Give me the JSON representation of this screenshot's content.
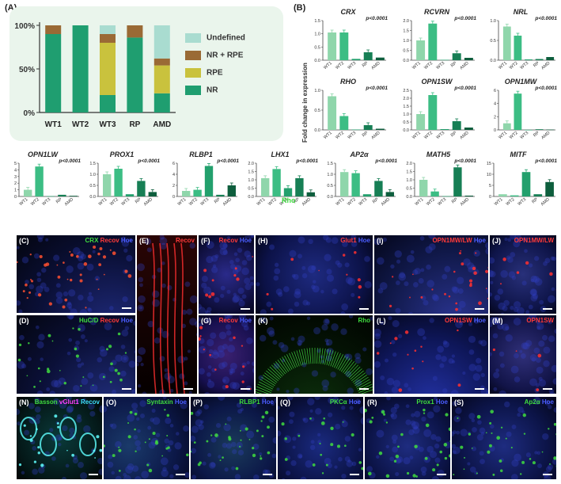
{
  "panelA": {
    "label": "(A)",
    "yticks": [
      "100%",
      "50%",
      "0%"
    ],
    "legend": [
      {
        "label": "Undefined",
        "color": "#a9dcd0"
      },
      {
        "label": "NR + RPE",
        "color": "#9a6a35"
      },
      {
        "label": "RPE",
        "color": "#c9c23d"
      },
      {
        "label": "NR",
        "color": "#1f9e70"
      }
    ]
  },
  "panelB": {
    "label": "(B)",
    "ylabel": "Fold change in expression",
    "rho_label": "Rho"
  },
  "colors": {
    "WT1": "#8fd6ab",
    "WT2": "#3cbd84",
    "WT3": "#23a06d",
    "RP": "#177f55",
    "AMD": "#0e5e3d"
  },
  "chart_data": [
    {
      "type": "bar",
      "title": "",
      "categories": [
        "WT1",
        "WT2",
        "WT3",
        "RP",
        "AMD"
      ],
      "stacked": true,
      "ylim": [
        0,
        100
      ],
      "series": [
        {
          "name": "NR",
          "values": [
            90,
            100,
            20,
            86,
            22
          ]
        },
        {
          "name": "RPE",
          "values": [
            0,
            0,
            60,
            0,
            32
          ]
        },
        {
          "name": "NR + RPE",
          "values": [
            10,
            0,
            10,
            14,
            8
          ]
        },
        {
          "name": "Undefined",
          "values": [
            0,
            0,
            10,
            0,
            38
          ]
        }
      ]
    },
    {
      "type": "bar",
      "title": "CRX",
      "pvalue": "p<0.0001",
      "categories": [
        "WT1",
        "WT2",
        "WT3",
        "RP",
        "AMD"
      ],
      "values": [
        1.05,
        1.05,
        0.05,
        0.3,
        0.1
      ],
      "yticks": [
        "0.0",
        "0.5",
        "1.0",
        "1.5"
      ],
      "ylim": [
        0,
        1.5
      ]
    },
    {
      "type": "bar",
      "title": "RCVRN",
      "pvalue": "p<0.0001",
      "categories": [
        "WT1",
        "WT2",
        "WT3",
        "RP",
        "AMD"
      ],
      "values": [
        1.0,
        1.85,
        0.02,
        0.35,
        0.12
      ],
      "yticks": [
        "0.0",
        "0.5",
        "1.0",
        "1.5",
        "2.0"
      ],
      "ylim": [
        0,
        2.0
      ]
    },
    {
      "type": "bar",
      "title": "NRL",
      "pvalue": "p<0.0001",
      "categories": [
        "WT1",
        "WT2",
        "WT3",
        "RP",
        "AMD"
      ],
      "values": [
        0.85,
        0.62,
        0.02,
        0.03,
        0.08
      ],
      "yticks": [
        "0.0",
        "0.5",
        "1.0"
      ],
      "ylim": [
        0,
        1.0
      ]
    },
    {
      "type": "bar",
      "title": "RHO",
      "pvalue": "p<0.0001",
      "categories": [
        "WT1",
        "WT2",
        "WT3",
        "RP",
        "AMD"
      ],
      "values": [
        0.85,
        0.35,
        0.01,
        0.12,
        0.03
      ],
      "yticks": [
        "0.0",
        "0.5",
        "1.0"
      ],
      "ylim": [
        0,
        1.0
      ]
    },
    {
      "type": "bar",
      "title": "OPN1SW",
      "pvalue": "p<0.0001",
      "categories": [
        "WT1",
        "WT2",
        "WT3",
        "RP",
        "AMD"
      ],
      "values": [
        1.0,
        2.2,
        0.05,
        0.55,
        0.15
      ],
      "yticks": [
        "0.0",
        "0.5",
        "1.0",
        "1.5",
        "2.0",
        "2.5"
      ],
      "ylim": [
        0,
        2.5
      ]
    },
    {
      "type": "bar",
      "title": "OPN1MW",
      "pvalue": "p<0.0001",
      "categories": [
        "WT1",
        "WT2",
        "WT3",
        "RP",
        "AMD"
      ],
      "values": [
        1.0,
        5.5,
        0.02,
        0.1,
        0.05
      ],
      "yticks": [
        "0",
        "2",
        "4",
        "6"
      ],
      "ylim": [
        0,
        6
      ]
    },
    {
      "type": "bar",
      "title": "OPN1LW",
      "pvalue": "p<0.0001",
      "categories": [
        "WT1",
        "WT2",
        "WT3",
        "RP",
        "AMD"
      ],
      "values": [
        1.0,
        4.5,
        0.05,
        0.25,
        0.1
      ],
      "yticks": [
        "0",
        "1",
        "2",
        "3",
        "4",
        "5"
      ],
      "ylim": [
        0,
        5
      ]
    },
    {
      "type": "bar",
      "title": "PROX1",
      "pvalue": "p<0.0001",
      "categories": [
        "WT1",
        "WT2",
        "WT3",
        "RP",
        "AMD"
      ],
      "values": [
        1.0,
        1.25,
        0.1,
        0.7,
        0.2
      ],
      "yticks": [
        "0.0",
        "0.5",
        "1.0",
        "1.5"
      ],
      "ylim": [
        0,
        1.5
      ]
    },
    {
      "type": "bar",
      "title": "RLBP1",
      "pvalue": "p<0.0001",
      "categories": [
        "WT1",
        "WT2",
        "WT3",
        "RP",
        "AMD"
      ],
      "values": [
        1.0,
        1.2,
        5.5,
        0.3,
        2.0
      ],
      "yticks": [
        "0",
        "2",
        "4",
        "6"
      ],
      "ylim": [
        0,
        6
      ]
    },
    {
      "type": "bar",
      "title": "LHX1",
      "pvalue": "p<0.0001",
      "categories": [
        "WT1",
        "WT2",
        "WT3",
        "RP",
        "AMD"
      ],
      "values": [
        1.1,
        1.65,
        0.5,
        1.1,
        0.25
      ],
      "yticks": [
        "0.0",
        "0.5",
        "1.0",
        "1.5",
        "2.0"
      ],
      "ylim": [
        0,
        2.0
      ]
    },
    {
      "type": "bar",
      "title": "AP2α",
      "pvalue": "p<0.0001",
      "categories": [
        "WT1",
        "WT2",
        "WT3",
        "RP",
        "AMD"
      ],
      "values": [
        1.1,
        1.05,
        0.1,
        0.7,
        0.2
      ],
      "yticks": [
        "0.0",
        "0.5",
        "1.0",
        "1.5"
      ],
      "ylim": [
        0,
        1.5
      ]
    },
    {
      "type": "bar",
      "title": "MATH5",
      "pvalue": "p<0.0001",
      "categories": [
        "WT1",
        "WT2",
        "WT3",
        "RP",
        "AMD"
      ],
      "values": [
        1.0,
        0.3,
        0.02,
        1.75,
        0.05
      ],
      "yticks": [
        "0.0",
        "0.5",
        "1.0",
        "1.5",
        "2.0"
      ],
      "ylim": [
        0,
        2.0
      ]
    },
    {
      "type": "bar",
      "title": "MITF",
      "pvalue": "p<0.0001",
      "categories": [
        "WT1",
        "WT2",
        "WT3",
        "RP",
        "AMD"
      ],
      "values": [
        1.0,
        0.5,
        11.0,
        1.0,
        6.5
      ],
      "yticks": [
        "0",
        "5",
        "10",
        "15"
      ],
      "ylim": [
        0,
        15
      ]
    }
  ],
  "micro": [
    {
      "id": "C",
      "label": "(C)",
      "stains": [
        {
          "t": "CRX",
          "c": "#3fdc3f"
        },
        {
          "t": "Recov",
          "c": "#ff3a3a"
        },
        {
          "t": "Hoe",
          "c": "#4a5cff"
        }
      ],
      "bg": "radial-gradient(circle at 80% 120%, #1f2a7a 0%, #0b1038 55%, #03050f 100%)"
    },
    {
      "id": "D",
      "label": "(D)",
      "stains": [
        {
          "t": "HuC/D",
          "c": "#3fdc3f"
        },
        {
          "t": "Recov",
          "c": "#ff3a3a"
        },
        {
          "t": "Hoe",
          "c": "#4a5cff"
        }
      ],
      "bg": "radial-gradient(circle at 80% 120%, #223080 0%, #0b1038 55%, #03050f 100%)"
    },
    {
      "id": "E",
      "label": "(E)",
      "stains": [
        {
          "t": "Recov",
          "c": "#ff3a3a"
        }
      ],
      "bg": "linear-gradient(180deg,#2a0505 0%,#120202 60%,#050000 100%)"
    },
    {
      "id": "F",
      "label": "(F)",
      "stains": [
        {
          "t": "Recov",
          "c": "#ff3a3a"
        },
        {
          "t": "Hoe",
          "c": "#4a5cff"
        }
      ],
      "bg": "radial-gradient(circle at 50% 50%, #2a2a8a 0%, #101040 70%, #05051a 100%)"
    },
    {
      "id": "G",
      "label": "(G)",
      "stains": [
        {
          "t": "Recov",
          "c": "#ff3a3a"
        },
        {
          "t": "Hoe",
          "c": "#4a5cff"
        }
      ],
      "bg": "radial-gradient(circle at 50% 50%, #3a2070 0%, #181050 70%, #05051a 100%)"
    },
    {
      "id": "H",
      "label": "(H)",
      "stains": [
        {
          "t": "Glut1",
          "c": "#ff3a3a"
        },
        {
          "t": "Hoe",
          "c": "#4a5cff"
        }
      ],
      "bg": "radial-gradient(circle at 50% 50%, #1e2a80 0%, #0c1248 70%, #04061a 100%)"
    },
    {
      "id": "I",
      "label": "(I)",
      "stains": [
        {
          "t": "OPN1MW/LW",
          "c": "#ff3a3a"
        },
        {
          "t": "Hoe",
          "c": "#4a5cff"
        }
      ],
      "bg": "radial-gradient(circle at 70% 110%, #2a3490 0%, #101848 60%, #04061a 100%)"
    },
    {
      "id": "J",
      "label": "(J)",
      "stains": [
        {
          "t": "OPN1MW/LW",
          "c": "#ff3a3a"
        }
      ],
      "bg": "radial-gradient(circle at 50% 50%, #28307a 0%, #0e1448 70%, #04061a 100%)"
    },
    {
      "id": "K",
      "label": "(K)",
      "stains": [
        {
          "t": "Rho",
          "c": "#3fdc3f"
        }
      ],
      "bg": "radial-gradient(circle at 50% 120%, #0c300c 0%, #041204 60%, #010401 100%)"
    },
    {
      "id": "L",
      "label": "(L)",
      "stains": [
        {
          "t": "OPN1SW",
          "c": "#ff3a3a"
        },
        {
          "t": "Hoe",
          "c": "#4a5cff"
        }
      ],
      "bg": "radial-gradient(circle at 50% 110%, #2230a0 0%, #0e1658 60%, #04061a 100%)"
    },
    {
      "id": "M",
      "label": "(M)",
      "stains": [
        {
          "t": "OPN1SW",
          "c": "#ff3a3a"
        }
      ],
      "bg": "radial-gradient(circle at 50% 50%, #30307a 0%, #121448 70%, #04061a 100%)"
    },
    {
      "id": "N",
      "label": "(N)",
      "stains": [
        {
          "t": "Basson",
          "c": "#3fdc3f"
        },
        {
          "t": "vGlut1",
          "c": "#ff40ff"
        },
        {
          "t": "Recov",
          "c": "#40e0ff"
        }
      ],
      "bg": "radial-gradient(circle at 50% 50%, #0a3a3a 0%, #041818 70%, #010404 100%)"
    },
    {
      "id": "O",
      "label": "(O)",
      "stains": [
        {
          "t": "Syntaxin",
          "c": "#3fdc3f"
        },
        {
          "t": "Hoe",
          "c": "#4a5cff"
        }
      ],
      "bg": "radial-gradient(circle at 30% 60%, #1a3a6a 0%, #0c1848 60%, #04061a 100%)"
    },
    {
      "id": "P",
      "label": "(P)",
      "stains": [
        {
          "t": "RLBP1",
          "c": "#3fdc3f"
        },
        {
          "t": "Hoe",
          "c": "#4a5cff"
        }
      ],
      "bg": "radial-gradient(circle at 50% 60%, #1a3a5a 0%, #0c1848 60%, #04061a 100%)"
    },
    {
      "id": "Q",
      "label": "(Q)",
      "stains": [
        {
          "t": "PKCα",
          "c": "#3fdc3f"
        },
        {
          "t": "Hoe",
          "c": "#4a5cff"
        }
      ],
      "bg": "radial-gradient(circle at 50% 60%, #1a2a80 0%, #0c1448 60%, #04061a 100%)"
    },
    {
      "id": "R",
      "label": "(R)",
      "stains": [
        {
          "t": "Prox1",
          "c": "#3fdc3f"
        },
        {
          "t": "Hoe",
          "c": "#4a5cff"
        }
      ],
      "bg": "radial-gradient(circle at 50% 60%, #1e2c80 0%, #0c1448 60%, #04061a 100%)"
    },
    {
      "id": "S",
      "label": "(S)",
      "stains": [
        {
          "t": "Ap2α",
          "c": "#3fdc3f"
        },
        {
          "t": "Hoe",
          "c": "#4a5cff"
        }
      ],
      "bg": "radial-gradient(circle at 50% 60%, #1e2c80 0%, #0c1448 60%, #04061a 100%)"
    }
  ]
}
